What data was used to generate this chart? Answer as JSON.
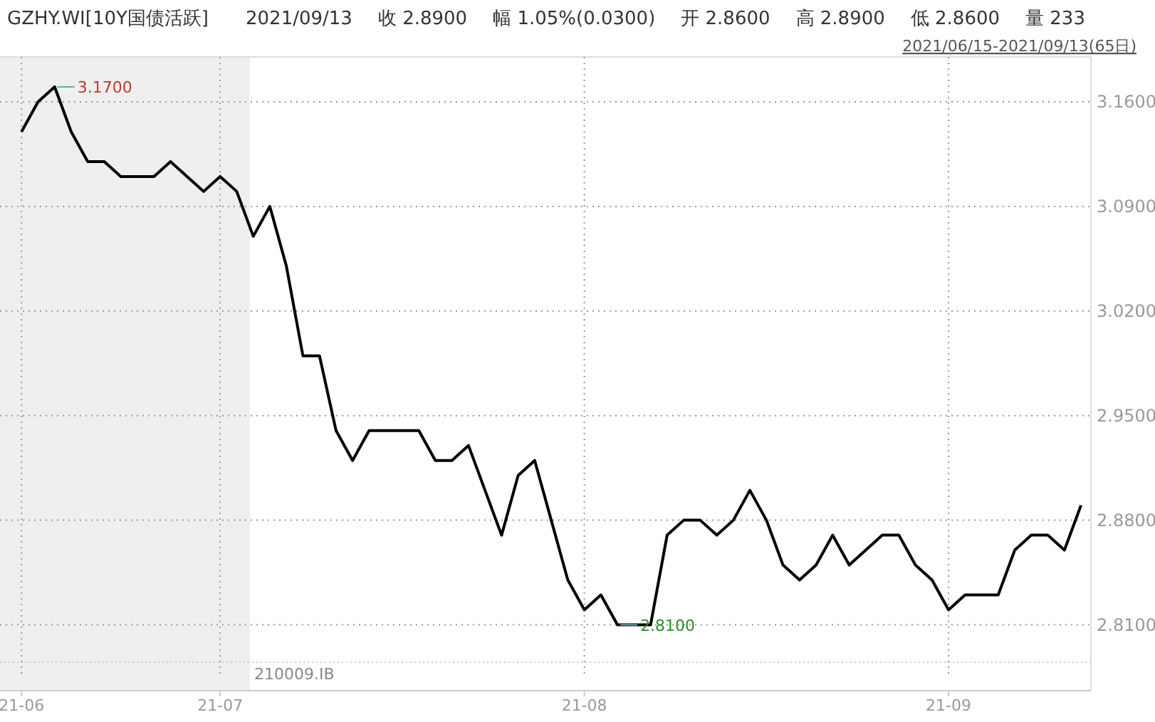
{
  "chart_data": {
    "type": "line",
    "title": "GZHY.WI[10Y国债活跃]",
    "subtitle": "2021/06/15-2021/09/13(65日)",
    "annotations": [
      "2021/09/13",
      "收 2.8900",
      "幅 1.05%(0.0300)",
      "开 2.8600",
      "高 2.8900",
      "低 2.8600",
      "量 233",
      "210009.IB",
      "3.1700",
      "2.8100"
    ],
    "categories": [
      "21-06",
      null,
      null,
      null,
      null,
      null,
      null,
      null,
      null,
      null,
      null,
      null,
      "21-07",
      null,
      null,
      null,
      null,
      null,
      null,
      null,
      null,
      null,
      null,
      null,
      null,
      null,
      null,
      null,
      null,
      null,
      null,
      null,
      null,
      null,
      "21-08",
      null,
      null,
      null,
      null,
      null,
      null,
      null,
      null,
      null,
      null,
      null,
      null,
      null,
      null,
      null,
      null,
      null,
      null,
      null,
      null,
      null,
      "21-09",
      null,
      null,
      null,
      null,
      null,
      null,
      null,
      null
    ],
    "series": [
      {
        "color": "#000000",
        "values": [
          3.14,
          3.16,
          3.17,
          3.14,
          3.12,
          3.12,
          3.11,
          3.11,
          3.11,
          3.12,
          3.11,
          3.1,
          3.11,
          3.1,
          3.07,
          3.09,
          3.05,
          2.99,
          2.99,
          2.94,
          2.92,
          2.94,
          2.94,
          2.94,
          2.94,
          2.92,
          2.92,
          2.93,
          2.9,
          2.87,
          2.91,
          2.92,
          2.88,
          2.84,
          2.82,
          2.83,
          2.81,
          2.81,
          2.81,
          2.87,
          2.88,
          2.88,
          2.87,
          2.88,
          2.9,
          2.88,
          2.85,
          2.84,
          2.85,
          2.87,
          2.85,
          2.86,
          2.87,
          2.87,
          2.85,
          2.84,
          2.82,
          2.83,
          2.83,
          2.83,
          2.86,
          2.87,
          2.87,
          2.86,
          2.89
        ]
      }
    ],
    "ylim": [
      2.785,
      3.19
    ],
    "yticks": [
      {
        "value": 3.16,
        "label": "3.1600"
      },
      {
        "value": 3.09,
        "label": "3.0900"
      },
      {
        "value": 3.02,
        "label": "3.0200"
      },
      {
        "value": 2.95,
        "label": "2.9500"
      },
      {
        "value": 2.88,
        "label": "2.8800"
      },
      {
        "value": 2.81,
        "label": "2.8100"
      }
    ],
    "grid": true,
    "marker": "none",
    "line_style": "solid"
  }
}
